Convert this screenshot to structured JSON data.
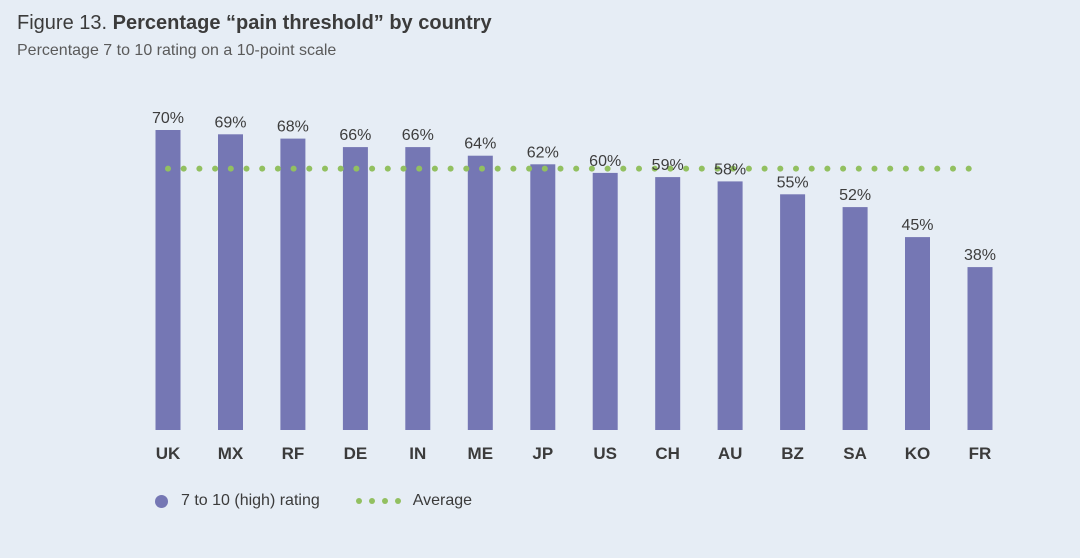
{
  "header": {
    "figure_prefix": "Figure 13. ",
    "title": "Percentage “pain threshold” by country",
    "subtitle": "Percentage 7 to 10 rating on a 10-point scale"
  },
  "legend": {
    "series_label": "7 to 10 (high) rating",
    "average_label": "Average"
  },
  "colors": {
    "bar": "#7577b4",
    "average": "#92c060"
  },
  "chart_data": {
    "type": "bar",
    "categories": [
      "UK",
      "MX",
      "RF",
      "DE",
      "IN",
      "ME",
      "JP",
      "US",
      "CH",
      "AU",
      "BZ",
      "SA",
      "KO",
      "FR"
    ],
    "series": [
      {
        "name": "7 to 10 (high) rating",
        "values": [
          70,
          69,
          68,
          66,
          66,
          64,
          62,
          60,
          59,
          58,
          55,
          52,
          45,
          38
        ]
      }
    ],
    "data_labels": [
      "70%",
      "69%",
      "68%",
      "66%",
      "66%",
      "64%",
      "62%",
      "60%",
      "59%",
      "58%",
      "55%",
      "52%",
      "45%",
      "38%"
    ],
    "average": 61,
    "ylim": [
      0,
      70
    ],
    "grid": false,
    "legend_position": "bottom-left"
  }
}
